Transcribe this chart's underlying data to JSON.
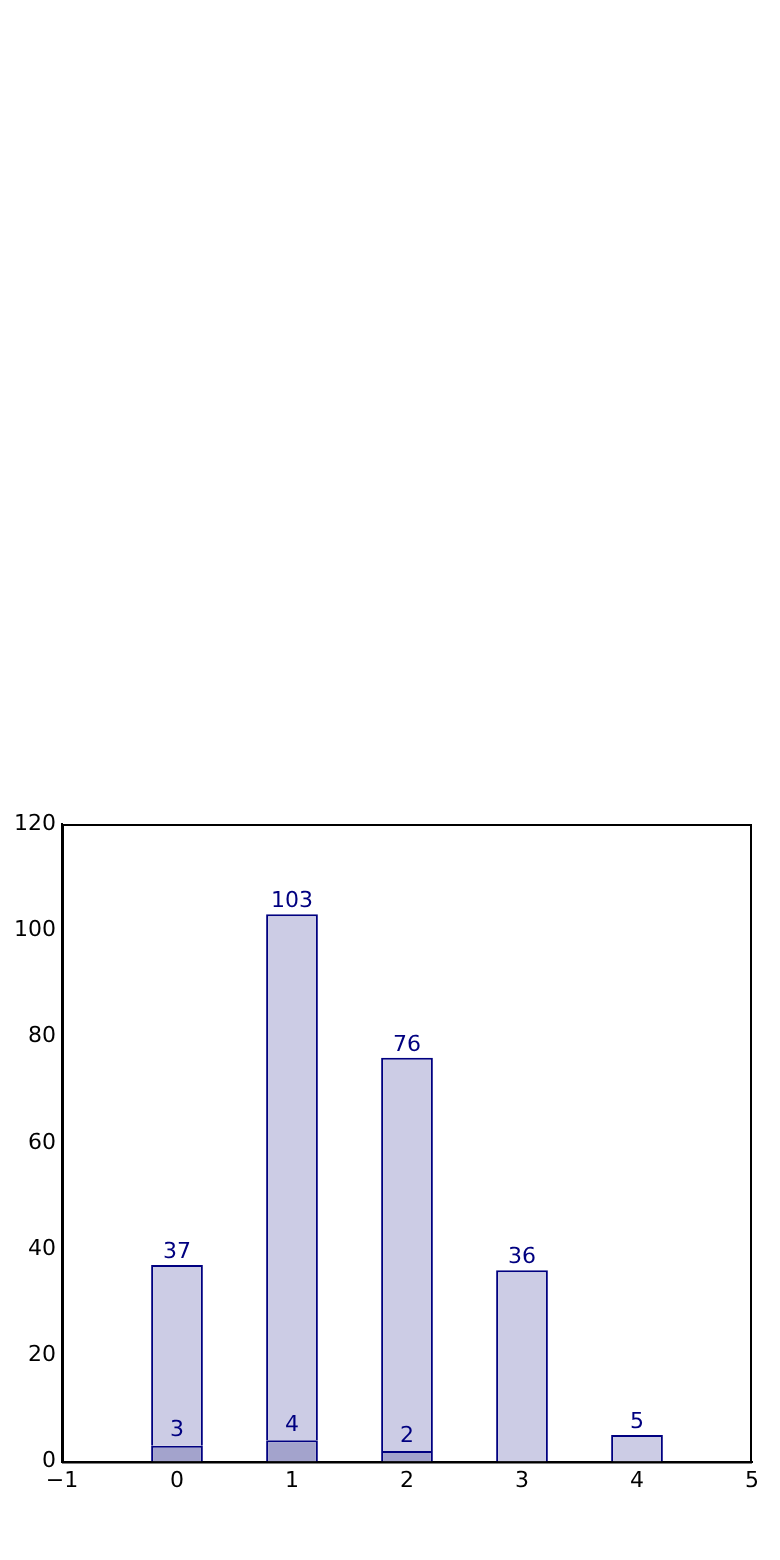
{
  "chart_data": {
    "type": "bar",
    "x": [
      0,
      1,
      2,
      3,
      4
    ],
    "stacked": true,
    "series": [
      {
        "color": "#a3a3cc",
        "values": [
          3,
          4,
          2,
          null,
          null
        ],
        "value_labels": [
          "3",
          "4",
          "2",
          null,
          null
        ]
      },
      {
        "color": "#ccccE5",
        "values": [
          34,
          99,
          74,
          36,
          5
        ]
      }
    ],
    "totals": [
      "37",
      "103",
      "76",
      "36",
      "5"
    ],
    "xlim": [
      -1,
      5
    ],
    "xticks": [
      {
        "value": -1,
        "label": "−1"
      },
      0,
      1,
      2,
      3,
      4,
      5
    ],
    "ylim": [
      0,
      120
    ],
    "yticks": [
      0,
      20,
      40,
      60,
      80,
      100,
      120
    ],
    "grid": false,
    "legend": false
  }
}
